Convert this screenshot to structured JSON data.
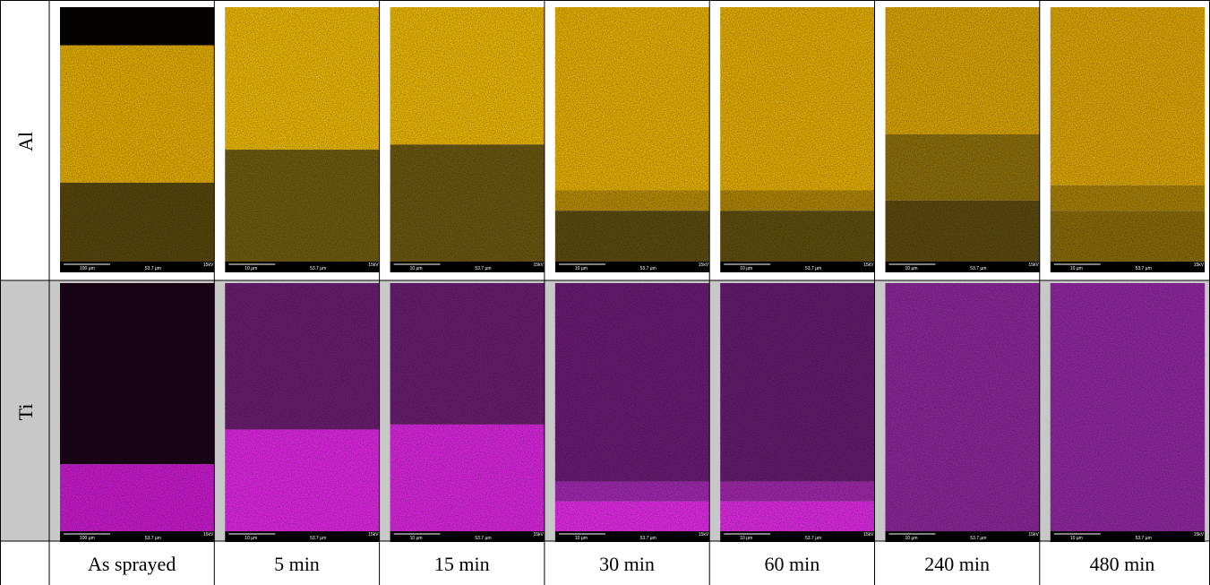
{
  "row_labels": [
    "Al",
    "Ti"
  ],
  "columns": [
    {
      "label": "As sprayed",
      "scale": "100 µm"
    },
    {
      "label": "5 min",
      "scale": "10 µm"
    },
    {
      "label": "15 min",
      "scale": "10 µm"
    },
    {
      "label": "30 min",
      "scale": "10 µm"
    },
    {
      "label": "60 min",
      "scale": "10 µm"
    },
    {
      "label": "240 min",
      "scale": "10 µm"
    },
    {
      "label": "480 min",
      "scale": "10 µm"
    }
  ],
  "field_width": "53.7 µm",
  "voltage": "15kV"
}
